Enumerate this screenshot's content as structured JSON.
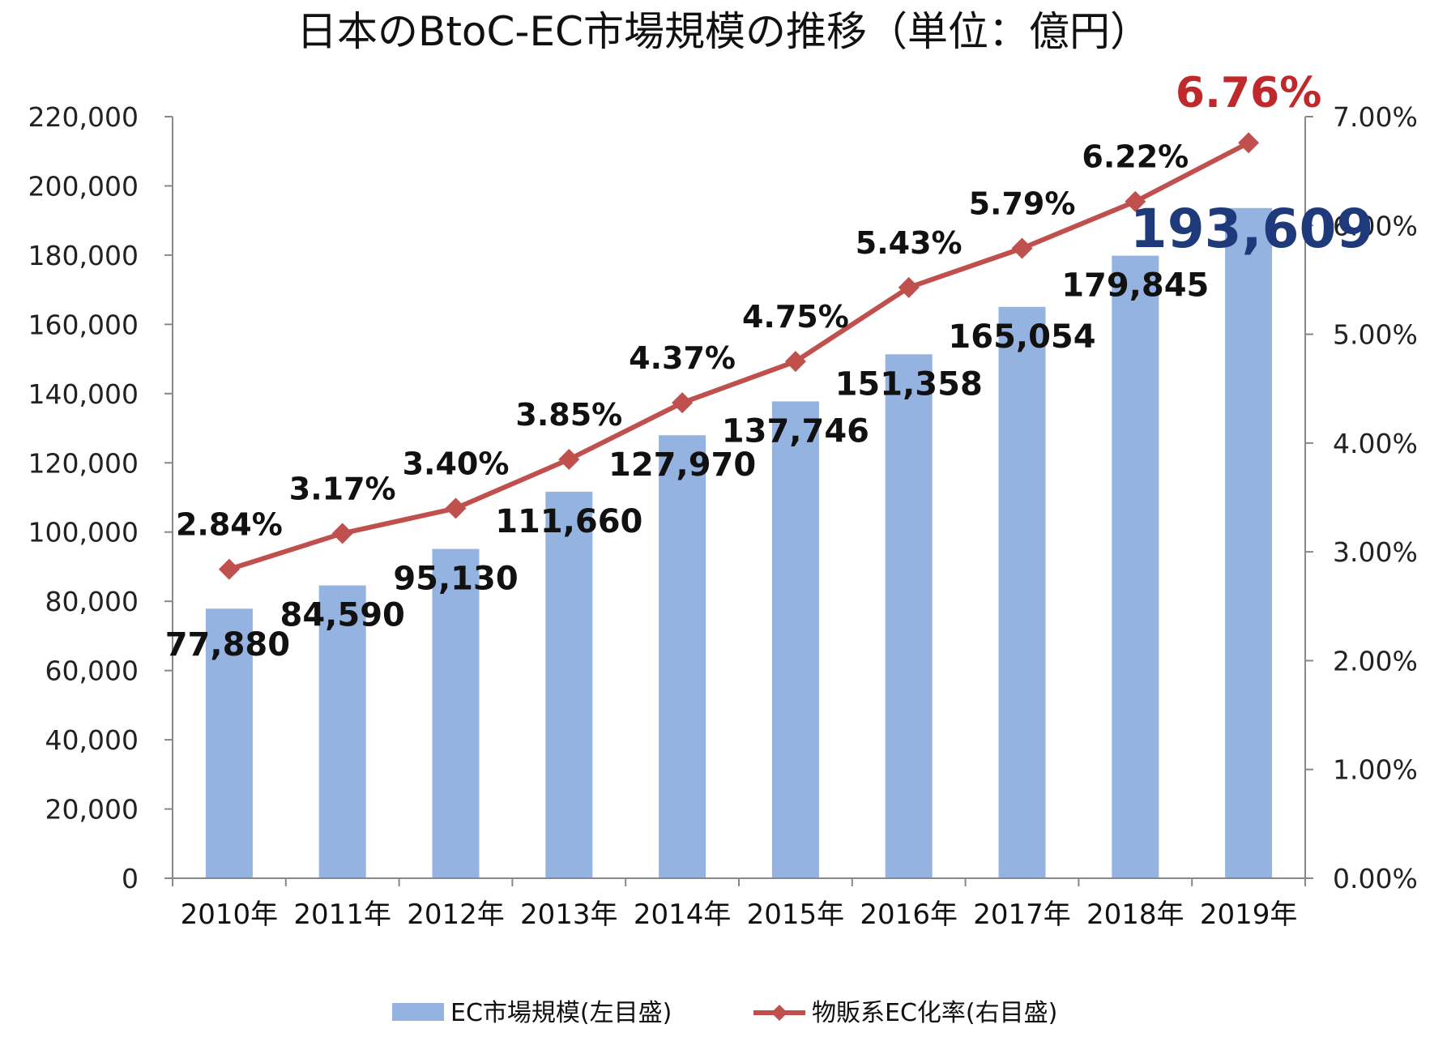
{
  "chart_data": {
    "type": "bar",
    "title": "日本のBtoC-EC市場規模の推移（単位：億円）",
    "categories": [
      "2010年",
      "2011年",
      "2012年",
      "2013年",
      "2014年",
      "2015年",
      "2016年",
      "2017年",
      "2018年",
      "2019年"
    ],
    "series": [
      {
        "name": "EC市場規模(左目盛)",
        "type": "bar",
        "axis": "left",
        "color": "#95B3E0",
        "values": [
          77880,
          84590,
          95130,
          111660,
          127970,
          137746,
          151358,
          165054,
          179845,
          193609
        ],
        "labels": [
          "77,880",
          "84,590",
          "95,130",
          "111,660",
          "127,970",
          "137,746",
          "151,358",
          "165,054",
          "179,845",
          "193,609"
        ]
      },
      {
        "name": "物販系EC化率(右目盛)",
        "type": "line",
        "axis": "right",
        "color": "#C0504D",
        "marker": "diamond",
        "values": [
          2.84,
          3.17,
          3.4,
          3.85,
          4.37,
          4.75,
          5.43,
          5.79,
          6.22,
          6.76
        ],
        "labels": [
          "2.84%",
          "3.17%",
          "3.40%",
          "3.85%",
          "4.37%",
          "4.75%",
          "5.43%",
          "5.79%",
          "6.22%",
          "6.76%"
        ]
      }
    ],
    "y_left": {
      "ylim": [
        0,
        220000
      ],
      "ticks": [
        0,
        20000,
        40000,
        60000,
        80000,
        100000,
        120000,
        140000,
        160000,
        180000,
        200000,
        220000
      ],
      "tick_labels": [
        "0",
        "20,000",
        "40,000",
        "60,000",
        "80,000",
        "100,000",
        "120,000",
        "140,000",
        "160,000",
        "180,000",
        "200,000",
        "220,000"
      ]
    },
    "y_right": {
      "ylim": [
        0,
        7
      ],
      "ticks": [
        0,
        1,
        2,
        3,
        4,
        5,
        6,
        7
      ],
      "tick_labels": [
        "0.00%",
        "1.00%",
        "2.00%",
        "3.00%",
        "4.00%",
        "5.00%",
        "6.00%",
        "7.00%"
      ]
    },
    "highlight": {
      "last_bar_color": "#1F3A7A",
      "last_line_color": "#C0292B",
      "default_label_color": "#111111"
    },
    "legend": {
      "position": "bottom"
    },
    "grid": false
  }
}
